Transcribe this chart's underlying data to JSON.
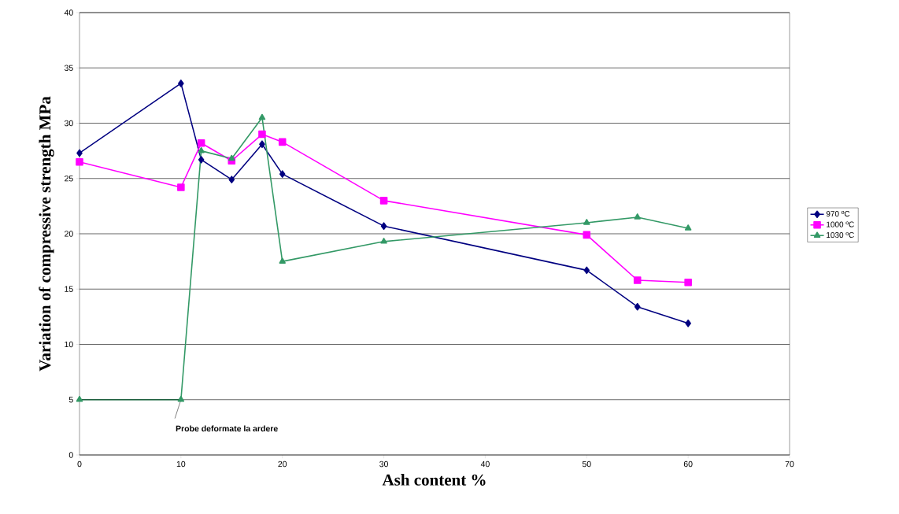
{
  "chart_data": {
    "type": "line",
    "xlabel": "Ash content %",
    "ylabel": "Variation of compressive strength   MPa",
    "x": [
      0,
      10,
      12,
      15,
      18,
      20,
      30,
      50,
      55,
      60
    ],
    "series": [
      {
        "name": "970 ºC",
        "color": "#000080",
        "marker": "diamond",
        "values": [
          27.3,
          33.6,
          26.7,
          24.9,
          28.1,
          25.4,
          20.7,
          16.7,
          13.4,
          11.9
        ]
      },
      {
        "name": "1000 ºC",
        "color": "#ff00ff",
        "marker": "square",
        "values": [
          26.5,
          24.2,
          28.2,
          26.6,
          29.0,
          28.3,
          23.0,
          19.9,
          15.8,
          15.6
        ]
      },
      {
        "name": "1030 ºC",
        "color": "#339966",
        "marker": "triangle",
        "values": [
          5,
          5,
          27.5,
          26.8,
          30.5,
          17.5,
          19.3,
          21.0,
          21.5,
          20.5
        ]
      }
    ],
    "xlim": [
      0,
      70
    ],
    "ylim": [
      0,
      40
    ],
    "xticks": [
      0,
      10,
      20,
      30,
      40,
      50,
      60,
      70
    ],
    "yticks": [
      0,
      5,
      10,
      15,
      20,
      25,
      30,
      35,
      40
    ],
    "grid": "y",
    "legend": "right",
    "line_style": "solid",
    "annotations": [
      {
        "text": "Probe deformate la ardere",
        "x": 10,
        "y": 5
      }
    ]
  }
}
